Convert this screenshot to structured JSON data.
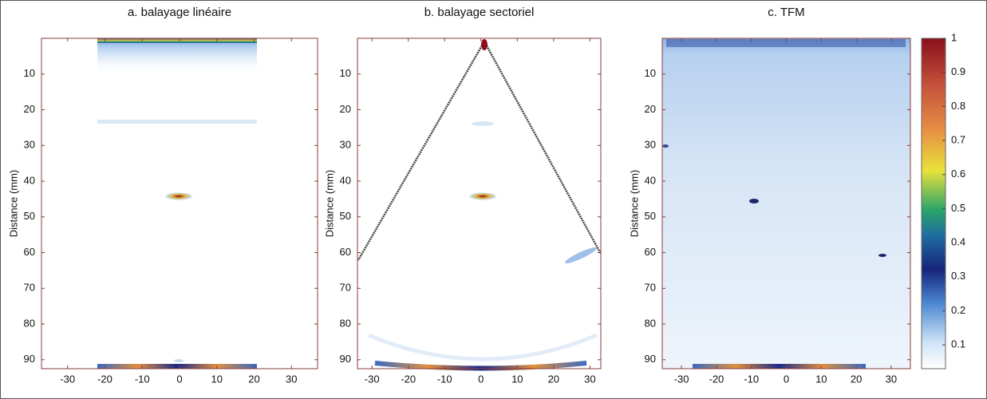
{
  "chart_data": [
    {
      "type": "image",
      "title": "a. balayage linéaire",
      "y_label": "Distance (mm)",
      "xlim": [
        -37,
        37
      ],
      "ylim": [
        0,
        92.5
      ],
      "xticks": [
        -30,
        -20,
        -10,
        0,
        10,
        20,
        30
      ],
      "yticks": [
        10,
        20,
        30,
        40,
        50,
        60,
        70,
        80,
        90
      ]
    },
    {
      "type": "image",
      "title": "b. balayage sectoriel",
      "y_label": "Distance (mm)",
      "xlim": [
        -34,
        33
      ],
      "ylim": [
        0,
        92.5
      ],
      "xticks": [
        -30,
        -20,
        -10,
        0,
        10,
        20,
        30
      ],
      "yticks": [
        10,
        20,
        30,
        40,
        50,
        60,
        70,
        80,
        90
      ]
    },
    {
      "type": "image",
      "title": "c. TFM",
      "y_label": "Distance (mm)",
      "xlim": [
        -35.5,
        35.5
      ],
      "ylim": [
        0,
        92.5
      ],
      "xticks": [
        -30,
        -20,
        -10,
        0,
        10,
        20,
        30
      ],
      "yticks": [
        10,
        20,
        30,
        40,
        50,
        60,
        70,
        80,
        90
      ],
      "colorbar": {
        "lim": [
          0.03,
          1
        ],
        "ticks": [
          0.1,
          0.2,
          0.3,
          0.4,
          0.5,
          0.6,
          0.7,
          0.8,
          0.9,
          1
        ]
      }
    }
  ]
}
